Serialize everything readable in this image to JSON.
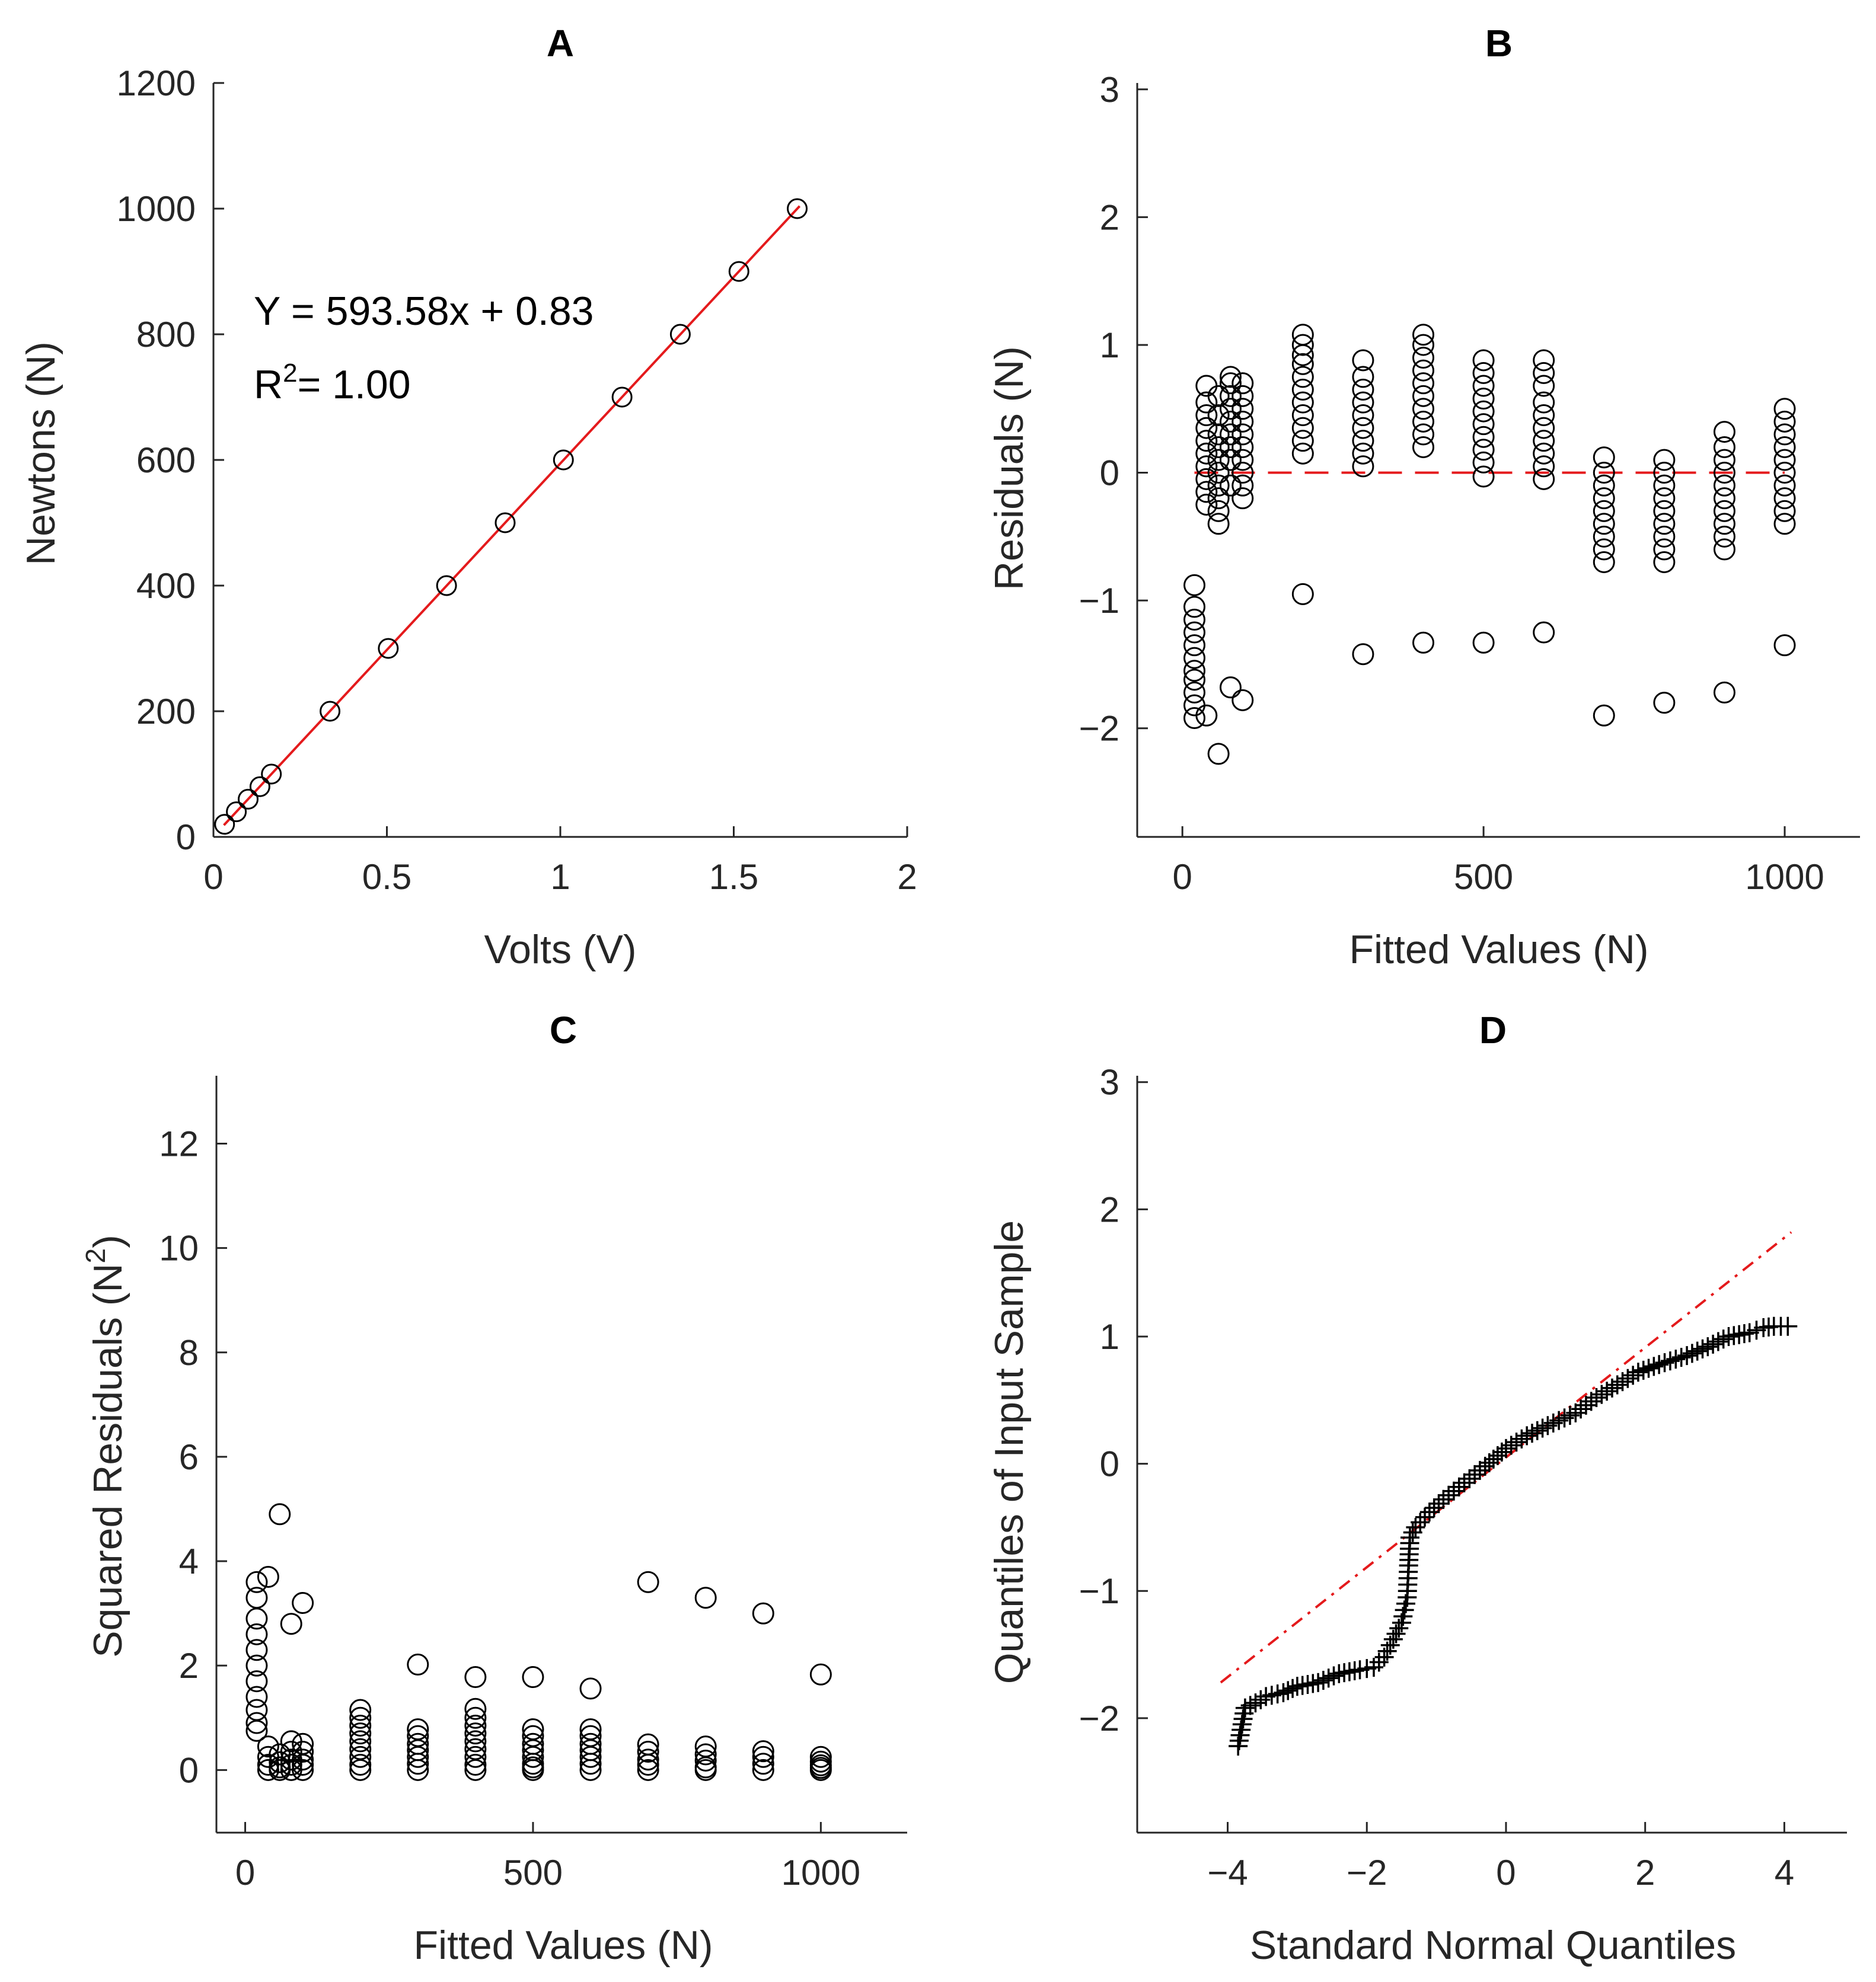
{
  "figure": {
    "background": "#ffffff",
    "marker_color": "#000000",
    "fit_color": "#e41a1c"
  },
  "chart_data": [
    {
      "id": "A",
      "type": "scatter",
      "title": "A",
      "xlabel": "Volts (V)",
      "ylabel": "Newtons (N)",
      "xlim": [
        0,
        2
      ],
      "ylim": [
        0,
        1200
      ],
      "xticks": [
        0,
        0.5,
        1,
        1.5,
        2
      ],
      "xtick_labels": [
        "0",
        "0.5",
        "1",
        "1.5",
        "2"
      ],
      "yticks": [
        0,
        200,
        400,
        600,
        800,
        1000,
        1200
      ],
      "ytick_labels": [
        "0",
        "200",
        "400",
        "600",
        "800",
        "1000",
        "1200"
      ],
      "points": [
        [
          0.032,
          20
        ],
        [
          0.066,
          40
        ],
        [
          0.1,
          60
        ],
        [
          0.134,
          80
        ],
        [
          0.167,
          100
        ],
        [
          0.336,
          200
        ],
        [
          0.504,
          300
        ],
        [
          0.672,
          400
        ],
        [
          0.841,
          500
        ],
        [
          1.009,
          600
        ],
        [
          1.178,
          700
        ],
        [
          1.346,
          800
        ],
        [
          1.515,
          900
        ],
        [
          1.683,
          1000
        ]
      ],
      "fit_line": {
        "slope": 593.58,
        "intercept": 0.83,
        "x_range": [
          0.03,
          1.69
        ],
        "style": "solid",
        "color": "#e41a1c"
      },
      "annotations": {
        "equation": "Y = 593.58x + 0.83",
        "r2_prefix": "R",
        "r2_sup": "2",
        "r2_suffix": "= 1.00"
      }
    },
    {
      "id": "B",
      "type": "scatter",
      "title": "B",
      "xlabel": "Fitted Values (N)",
      "ylabel": "Residuals (N)",
      "xlim": [
        -75,
        1125
      ],
      "ylim": [
        -2.85,
        3.05
      ],
      "xticks": [
        0,
        500,
        1000
      ],
      "xtick_labels": [
        "0",
        "500",
        "1000"
      ],
      "yticks": [
        -2,
        -1,
        0,
        1,
        2,
        3
      ],
      "ytick_labels": [
        "−2",
        "−1",
        "0",
        "1",
        "2",
        "3"
      ],
      "reference_line": {
        "y": 0,
        "x_range": [
          20,
          1000
        ],
        "style": "dashed",
        "color": "#e41a1c"
      },
      "groups": [
        {
          "x": 20,
          "residuals": [
            -0.88,
            -1.05,
            -1.15,
            -1.25,
            -1.35,
            -1.45,
            -1.55,
            -1.62,
            -1.72,
            -1.82,
            -1.92
          ]
        },
        {
          "x": 40,
          "residuals": [
            0.68,
            0.55,
            0.45,
            0.35,
            0.25,
            0.15,
            0.05,
            -0.05,
            -0.15,
            -0.25,
            -1.9
          ]
        },
        {
          "x": 60,
          "residuals": [
            0.6,
            0.45,
            0.3,
            0.2,
            0.1,
            0.0,
            -0.1,
            -0.2,
            -0.3,
            -0.4,
            -2.2
          ]
        },
        {
          "x": 80,
          "residuals": [
            0.75,
            0.7,
            0.6,
            0.5,
            0.4,
            0.3,
            0.2,
            0.1,
            -0.1,
            -1.68
          ]
        },
        {
          "x": 100,
          "residuals": [
            0.7,
            0.6,
            0.5,
            0.4,
            0.3,
            0.2,
            0.1,
            0.0,
            -0.1,
            -0.2,
            -1.78
          ]
        },
        {
          "x": 200,
          "residuals": [
            1.08,
            1.0,
            0.92,
            0.85,
            0.75,
            0.65,
            0.55,
            0.45,
            0.35,
            0.25,
            0.15,
            -0.95
          ]
        },
        {
          "x": 300,
          "residuals": [
            0.88,
            0.75,
            0.65,
            0.55,
            0.45,
            0.35,
            0.25,
            0.15,
            0.05,
            -1.42
          ]
        },
        {
          "x": 400,
          "residuals": [
            1.08,
            1.0,
            0.9,
            0.8,
            0.7,
            0.6,
            0.5,
            0.4,
            0.3,
            0.2,
            -1.33
          ]
        },
        {
          "x": 500,
          "residuals": [
            0.88,
            0.78,
            0.68,
            0.58,
            0.48,
            0.38,
            0.28,
            0.18,
            0.08,
            -0.03,
            -1.33
          ]
        },
        {
          "x": 600,
          "residuals": [
            0.88,
            0.78,
            0.68,
            0.55,
            0.45,
            0.35,
            0.25,
            0.15,
            0.05,
            -0.05,
            -1.25
          ]
        },
        {
          "x": 700,
          "residuals": [
            0.12,
            0.0,
            -0.1,
            -0.2,
            -0.3,
            -0.4,
            -0.5,
            -0.6,
            -0.7,
            -1.9
          ]
        },
        {
          "x": 800,
          "residuals": [
            0.1,
            0.0,
            -0.1,
            -0.2,
            -0.3,
            -0.4,
            -0.5,
            -0.6,
            -0.7,
            -1.8
          ]
        },
        {
          "x": 900,
          "residuals": [
            0.32,
            0.2,
            0.1,
            0.0,
            -0.1,
            -0.2,
            -0.3,
            -0.4,
            -0.5,
            -0.6,
            -1.72
          ]
        },
        {
          "x": 1000,
          "residuals": [
            0.5,
            0.4,
            0.3,
            0.2,
            0.1,
            0.0,
            -0.1,
            -0.2,
            -0.3,
            -0.4,
            -1.35
          ]
        }
      ]
    },
    {
      "id": "C",
      "type": "scatter",
      "title": "C",
      "xlabel": "Fitted Values (N)",
      "ylabel_prefix": "Squared Residuals (N",
      "ylabel_sup": "2",
      "ylabel_suffix": ")",
      "xlim": [
        -50,
        1150
      ],
      "ylim": [
        -1.2,
        13.3
      ],
      "xticks": [
        0,
        500,
        1000
      ],
      "xtick_labels": [
        "0",
        "500",
        "1000"
      ],
      "yticks": [
        0,
        2,
        4,
        6,
        8,
        10,
        12
      ],
      "ytick_labels": [
        "0",
        "2",
        "4",
        "6",
        "8",
        "10",
        "12"
      ],
      "groups": [
        {
          "x": 20,
          "values": [
            3.6,
            3.3,
            2.9,
            2.6,
            2.3,
            2.0,
            1.7,
            1.4,
            1.15,
            0.9,
            0.75
          ]
        },
        {
          "x": 40,
          "values": [
            3.7,
            0.45,
            0.25,
            0.1,
            0.0
          ]
        },
        {
          "x": 60,
          "values": [
            4.9,
            0.3,
            0.15,
            0.05,
            0.0
          ]
        },
        {
          "x": 80,
          "values": [
            2.8,
            0.55,
            0.35,
            0.2,
            0.1,
            0.0
          ]
        },
        {
          "x": 100,
          "values": [
            3.2,
            0.5,
            0.35,
            0.2,
            0.1,
            0.0
          ]
        },
        {
          "x": 200,
          "values": [
            1.15,
            1.0,
            0.85,
            0.7,
            0.55,
            0.4,
            0.25,
            0.1,
            0.0
          ]
        },
        {
          "x": 300,
          "values": [
            2.02,
            0.78,
            0.65,
            0.5,
            0.38,
            0.25,
            0.12,
            0.0
          ]
        },
        {
          "x": 400,
          "values": [
            1.78,
            1.17,
            1.0,
            0.85,
            0.7,
            0.55,
            0.4,
            0.25,
            0.1,
            0.0
          ]
        },
        {
          "x": 500,
          "values": [
            1.78,
            0.78,
            0.65,
            0.5,
            0.38,
            0.25,
            0.12,
            0.05,
            0.0
          ]
        },
        {
          "x": 600,
          "values": [
            1.56,
            0.78,
            0.65,
            0.5,
            0.38,
            0.25,
            0.12,
            0.0
          ]
        },
        {
          "x": 700,
          "values": [
            3.6,
            0.49,
            0.35,
            0.2,
            0.1,
            0.0
          ]
        },
        {
          "x": 800,
          "values": [
            3.3,
            0.45,
            0.3,
            0.18,
            0.05,
            0.0
          ]
        },
        {
          "x": 900,
          "values": [
            3.0,
            0.36,
            0.25,
            0.12,
            0.0
          ]
        },
        {
          "x": 1000,
          "values": [
            1.83,
            0.25,
            0.16,
            0.09,
            0.04,
            0.0
          ]
        }
      ]
    },
    {
      "id": "D",
      "type": "scatter",
      "title": "D",
      "xlabel": "Standard Normal Quantiles",
      "ylabel": "Quantiles of Input Sample",
      "xlim": [
        -5.3,
        4.9
      ],
      "ylim": [
        -2.9,
        3.05
      ],
      "xticks": [
        -4,
        -2,
        0,
        2,
        4
      ],
      "xtick_labels": [
        "−4",
        "−2",
        "0",
        "2",
        "4"
      ],
      "yticks": [
        -2,
        -1,
        0,
        1,
        2,
        3
      ],
      "ytick_labels": [
        "−2",
        "−1",
        "0",
        "1",
        "2",
        "3"
      ],
      "reference_line": {
        "points": [
          [
            -4.1,
            -1.72
          ],
          [
            4.1,
            1.82
          ]
        ],
        "style": "dashdot",
        "color": "#e41a1c"
      },
      "qq_curve": [
        [
          -3.85,
          -2.22
        ],
        [
          -3.75,
          -1.92
        ],
        [
          -3.6,
          -1.88
        ],
        [
          -3.45,
          -1.83
        ],
        [
          -3.2,
          -1.8
        ],
        [
          -3.0,
          -1.75
        ],
        [
          -2.7,
          -1.72
        ],
        [
          -2.4,
          -1.65
        ],
        [
          -2.1,
          -1.62
        ],
        [
          -1.9,
          -1.6
        ],
        [
          -1.75,
          -1.52
        ],
        [
          -1.62,
          -1.38
        ],
        [
          -1.5,
          -1.25
        ],
        [
          -1.42,
          -1.05
        ],
        [
          -1.4,
          -0.8
        ],
        [
          -1.38,
          -0.58
        ],
        [
          -1.3,
          -0.5
        ],
        [
          -1.1,
          -0.38
        ],
        [
          -0.9,
          -0.28
        ],
        [
          -0.6,
          -0.15
        ],
        [
          -0.3,
          -0.02
        ],
        [
          0.0,
          0.12
        ],
        [
          0.3,
          0.22
        ],
        [
          0.6,
          0.3
        ],
        [
          1.0,
          0.4
        ],
        [
          1.3,
          0.52
        ],
        [
          1.6,
          0.62
        ],
        [
          1.9,
          0.72
        ],
        [
          2.2,
          0.78
        ],
        [
          2.6,
          0.85
        ],
        [
          2.9,
          0.92
        ],
        [
          3.2,
          1.0
        ],
        [
          3.5,
          1.03
        ],
        [
          3.7,
          1.07
        ],
        [
          3.85,
          1.08
        ],
        [
          4.05,
          1.08
        ]
      ]
    }
  ]
}
